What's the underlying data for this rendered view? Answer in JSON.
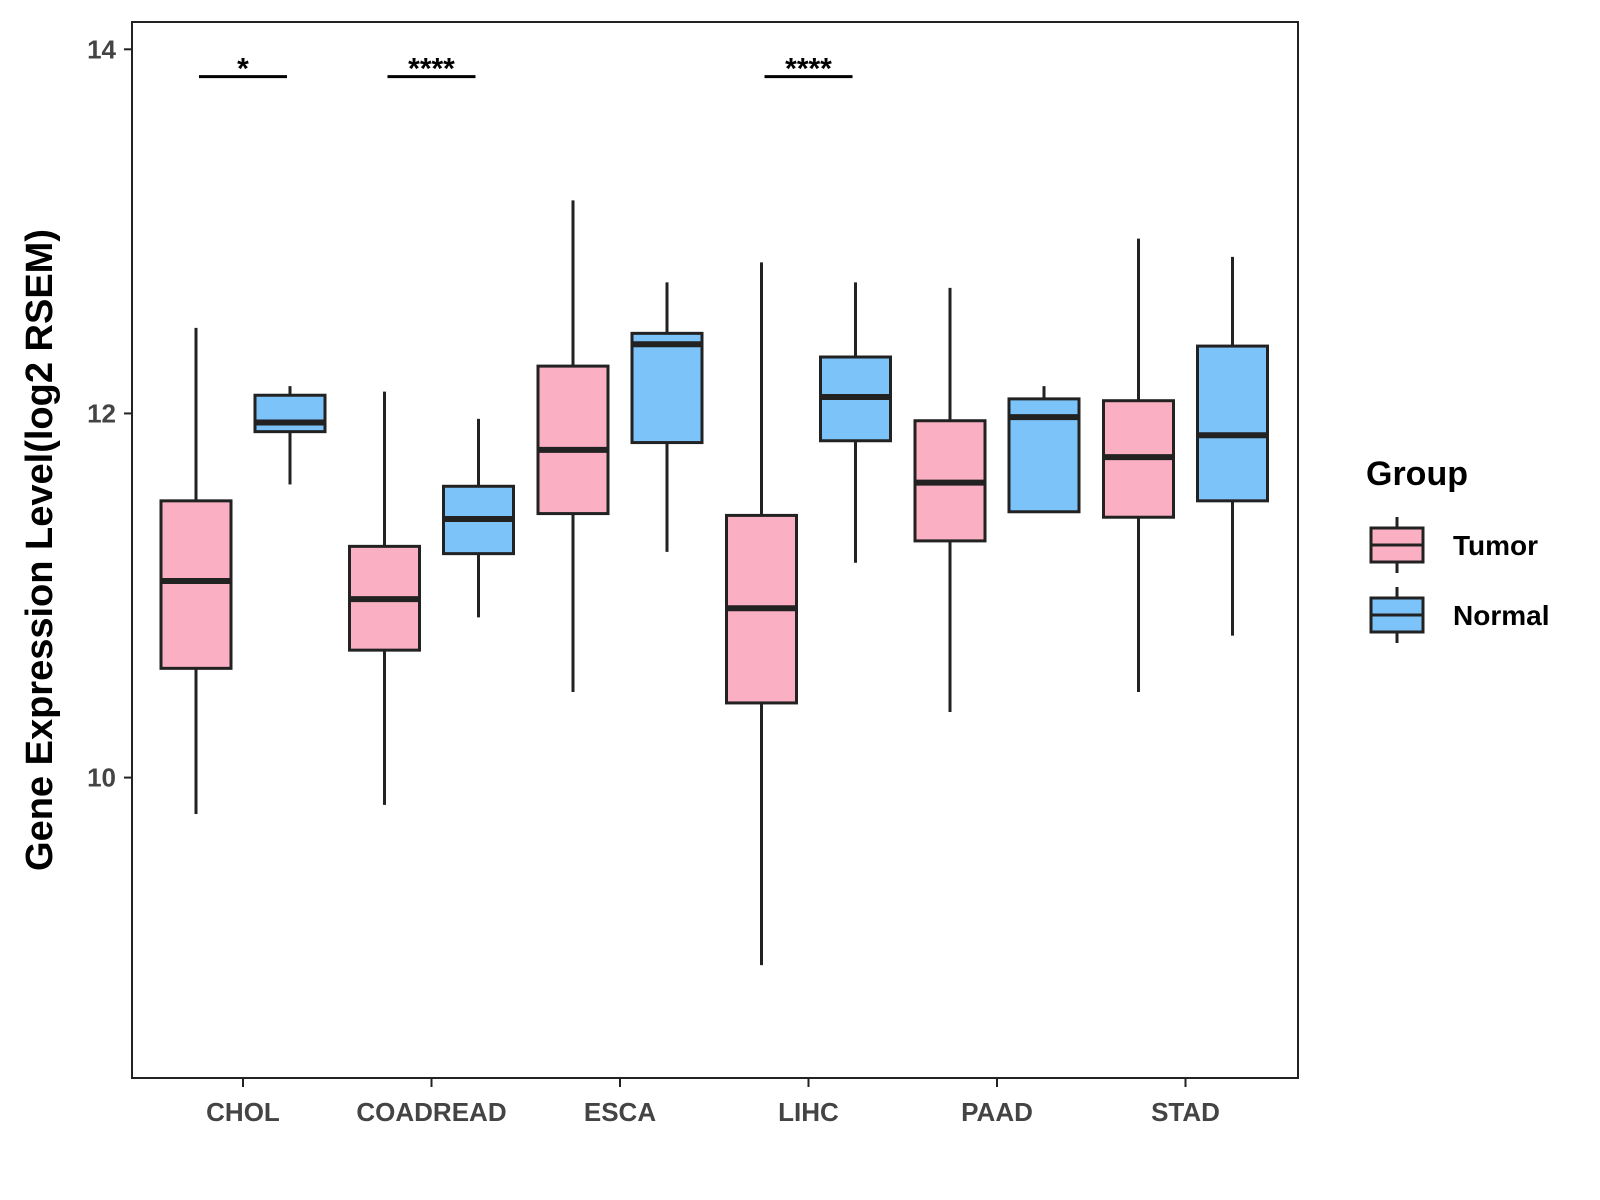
{
  "chart_data": {
    "type": "boxplot",
    "ylabel": "Gene Expression Level(log2 RSEM)",
    "xlabel": "",
    "ylim": [
      8.35,
      14.15
    ],
    "yticks": [
      10,
      12,
      14
    ],
    "categories": [
      "CHOL",
      "COADREAD",
      "ESCA",
      "LIHC",
      "PAAD",
      "STAD"
    ],
    "legend": {
      "title": "Group",
      "position": "right",
      "entries": [
        {
          "name": "Tumor",
          "color": "#FAB0C2"
        },
        {
          "name": "Normal",
          "color": "#7BC3F8"
        }
      ]
    },
    "series": [
      {
        "name": "Tumor",
        "color": "#FAB0C2",
        "boxes": [
          {
            "category": "CHOL",
            "min": 9.8,
            "q1": 10.6,
            "median": 11.08,
            "q3": 11.52,
            "max": 12.47
          },
          {
            "category": "COADREAD",
            "min": 9.85,
            "q1": 10.7,
            "median": 10.98,
            "q3": 11.27,
            "max": 12.12
          },
          {
            "category": "ESCA",
            "min": 10.47,
            "q1": 11.45,
            "median": 11.8,
            "q3": 12.26,
            "max": 13.17
          },
          {
            "category": "LIHC",
            "min": 8.97,
            "q1": 10.41,
            "median": 10.93,
            "q3": 11.44,
            "max": 12.83
          },
          {
            "category": "PAAD",
            "min": 10.36,
            "q1": 11.3,
            "median": 11.62,
            "q3": 11.96,
            "max": 12.69
          },
          {
            "category": "STAD",
            "min": 10.47,
            "q1": 11.43,
            "median": 11.76,
            "q3": 12.07,
            "max": 12.96
          }
        ]
      },
      {
        "name": "Normal",
        "color": "#7BC3F8",
        "boxes": [
          {
            "category": "CHOL",
            "min": 11.61,
            "q1": 11.9,
            "median": 11.95,
            "q3": 12.1,
            "max": 12.15
          },
          {
            "category": "COADREAD",
            "min": 10.88,
            "q1": 11.23,
            "median": 11.42,
            "q3": 11.6,
            "max": 11.97
          },
          {
            "category": "ESCA",
            "min": 11.24,
            "q1": 11.84,
            "median": 12.38,
            "q3": 12.44,
            "max": 12.72
          },
          {
            "category": "LIHC",
            "min": 11.18,
            "q1": 11.85,
            "median": 12.09,
            "q3": 12.31,
            "max": 12.72
          },
          {
            "category": "PAAD",
            "min": 11.46,
            "q1": 11.46,
            "median": 11.98,
            "q3": 12.08,
            "max": 12.15
          },
          {
            "category": "STAD",
            "min": 10.78,
            "q1": 11.52,
            "median": 11.88,
            "q3": 12.37,
            "max": 12.86
          }
        ]
      }
    ],
    "significance": [
      {
        "category": "CHOL",
        "label": "*"
      },
      {
        "category": "COADREAD",
        "label": "****"
      },
      {
        "category": "LIHC",
        "label": "****"
      }
    ],
    "significance_y": 13.85
  }
}
